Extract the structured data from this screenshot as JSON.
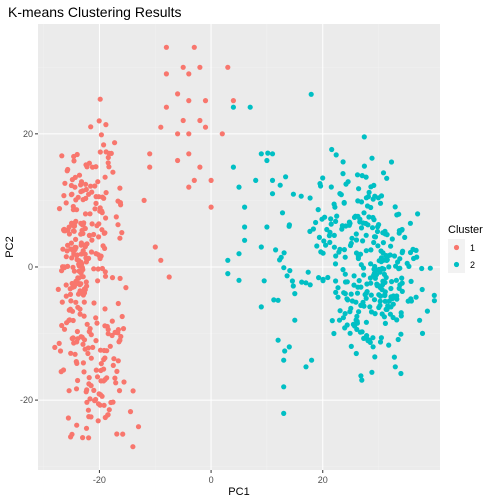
{
  "chart_data": {
    "type": "scatter",
    "title": "K-means Clustering Results",
    "xlabel": "PC1",
    "ylabel": "PC2",
    "xlim": [
      -31,
      41
    ],
    "ylim": [
      -30.5,
      36.5
    ],
    "xticks": [
      -20,
      0,
      20
    ],
    "yticks": [
      -20,
      0,
      20
    ],
    "grid": true,
    "legend": {
      "title": "Cluster",
      "position": "right"
    },
    "series": [
      {
        "name": "1",
        "color": "#F8766D",
        "seed": 7,
        "fixed_points": [
          [
            -8,
            33
          ],
          [
            -3,
            33
          ],
          [
            -5,
            30
          ],
          [
            -2,
            30
          ],
          [
            -8,
            29
          ],
          [
            -4,
            29
          ],
          [
            3,
            30
          ],
          [
            -6,
            26
          ],
          [
            -4,
            25
          ],
          [
            -1,
            25
          ],
          [
            4,
            25
          ],
          [
            -8,
            24
          ],
          [
            -5,
            22
          ],
          [
            -2,
            22
          ],
          [
            -9,
            21
          ],
          [
            -6,
            20
          ],
          [
            -4,
            20
          ],
          [
            -1,
            21
          ],
          [
            2,
            20
          ],
          [
            -11,
            17
          ],
          [
            -11,
            15
          ],
          [
            -6,
            16
          ],
          [
            -4,
            17
          ],
          [
            -2,
            15
          ],
          [
            -3,
            13
          ],
          [
            -4,
            12
          ],
          [
            0,
            13
          ],
          [
            -12,
            10
          ],
          [
            0,
            9
          ],
          [
            -7.5,
            -1.5
          ],
          [
            -14,
            -27
          ],
          [
            -13,
            -24
          ],
          [
            -10,
            3
          ],
          [
            -9,
            1
          ]
        ],
        "groups": [
          {
            "n": 200,
            "cx": -24,
            "cy": 0,
            "sx": 1.6,
            "sy": 9
          },
          {
            "n": 60,
            "cx": -20,
            "cy": -18,
            "sx": 1.8,
            "sy": 5
          },
          {
            "n": 50,
            "cx": -19,
            "cy": 11,
            "sx": 1.6,
            "sy": 6
          },
          {
            "n": 25,
            "cx": -17,
            "cy": -8,
            "sx": 1.4,
            "sy": 7
          }
        ]
      },
      {
        "name": "2",
        "color": "#00BFC4",
        "seed": 19,
        "fixed_points": [
          [
            4,
            24
          ],
          [
            7,
            24
          ],
          [
            9,
            17
          ],
          [
            11,
            17
          ],
          [
            11,
            13
          ],
          [
            8,
            13
          ],
          [
            4,
            15
          ],
          [
            5,
            12
          ],
          [
            6,
            9
          ],
          [
            6,
            6
          ],
          [
            6,
            4
          ],
          [
            5,
            2
          ],
          [
            3,
            1
          ],
          [
            3,
            -1
          ],
          [
            5,
            -2
          ],
          [
            9,
            3
          ],
          [
            10,
            6
          ],
          [
            11,
            11
          ],
          [
            10,
            16
          ],
          [
            9,
            -6
          ],
          [
            12,
            -5
          ],
          [
            15,
            -4
          ],
          [
            15,
            -8
          ],
          [
            14,
            -12
          ],
          [
            13,
            -14
          ],
          [
            13,
            -18
          ],
          [
            13,
            -22
          ],
          [
            17,
            -15
          ],
          [
            18,
            -14
          ],
          [
            23,
            -8
          ],
          [
            24,
            -7
          ],
          [
            22,
            -10
          ],
          [
            26,
            -13
          ],
          [
            27,
            -17
          ],
          [
            34,
            -16
          ],
          [
            33,
            -15
          ],
          [
            12,
            -11
          ]
        ],
        "groups": [
          {
            "n": 230,
            "cx": 30,
            "cy": -2,
            "sx": 4,
            "sy": 6
          },
          {
            "n": 60,
            "cx": 24,
            "cy": 10,
            "sx": 5,
            "sy": 5
          },
          {
            "n": 40,
            "cx": 17,
            "cy": 3,
            "sx": 4,
            "sy": 6
          }
        ]
      }
    ]
  }
}
